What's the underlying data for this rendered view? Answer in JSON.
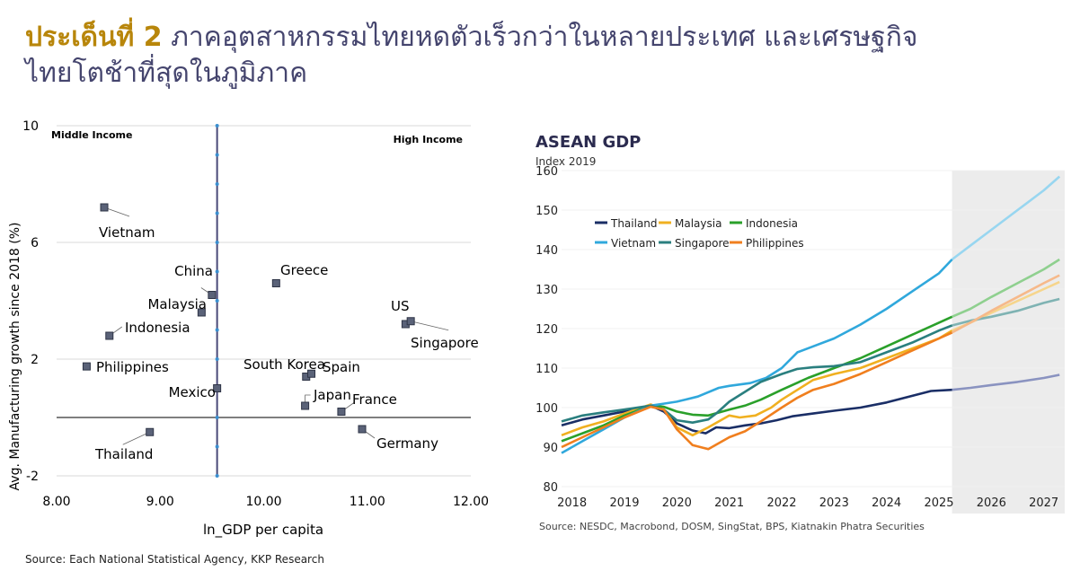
{
  "header": {
    "title_accent": "ประเด็นที่ 2",
    "title_rest": " ภาคอุตสาหกรรมไทยหดตัวเร็วกว่าในหลายประเทศ และเศรษฐกิจ",
    "title_line2": "ไทยโตช้าที่สุดในภูมิภาค"
  },
  "left_source": "Source: Each National Statistical Agency, KKP Research",
  "chart_data": [
    {
      "type": "scatter",
      "title": "",
      "xlabel": "ln_GDP per capita",
      "ylabel": "Avg. Manufacturing growth since 2018 (%)",
      "xlim": [
        8.0,
        12.0
      ],
      "ylim": [
        -2,
        10
      ],
      "xticks": [
        "8.00",
        "9.00",
        "10.00",
        "11.00",
        "12.00"
      ],
      "yticks": [
        "-2",
        "2",
        "6",
        "10"
      ],
      "divider_x": 9.55,
      "baseline_y": 0,
      "quadrant_labels": {
        "left": "Middle Income",
        "right": "High Income"
      },
      "points": [
        {
          "name": "Vietnam",
          "x": 8.46,
          "y": 7.2
        },
        {
          "name": "China",
          "x": 9.5,
          "y": 4.2
        },
        {
          "name": "Malaysia",
          "x": 9.4,
          "y": 3.6
        },
        {
          "name": "Indonesia",
          "x": 8.51,
          "y": 2.8
        },
        {
          "name": "Philippines",
          "x": 8.29,
          "y": 1.75
        },
        {
          "name": "Mexico",
          "x": 9.55,
          "y": 1.0
        },
        {
          "name": "Thailand",
          "x": 8.9,
          "y": -0.5
        },
        {
          "name": "Greece",
          "x": 10.12,
          "y": 4.6
        },
        {
          "name": "US",
          "x": 11.37,
          "y": 3.2
        },
        {
          "name": "Singapore",
          "x": 11.42,
          "y": 3.3
        },
        {
          "name": "South Korea",
          "x": 10.41,
          "y": 1.4
        },
        {
          "name": "Spain",
          "x": 10.46,
          "y": 1.5
        },
        {
          "name": "Japan",
          "x": 10.4,
          "y": 0.4
        },
        {
          "name": "France",
          "x": 10.75,
          "y": 0.2
        },
        {
          "name": "Germany",
          "x": 10.95,
          "y": -0.4
        }
      ]
    },
    {
      "type": "line",
      "title": "ASEAN GDP",
      "subtitle": "Index 2019",
      "ylim": [
        80,
        160
      ],
      "yticks": [
        "80",
        "90",
        "100",
        "110",
        "120",
        "130",
        "140",
        "150",
        "160"
      ],
      "xlim": [
        2017.8,
        2027.4
      ],
      "xticks": [
        "2018",
        "2019",
        "2020",
        "2021",
        "2022",
        "2023",
        "2024",
        "2025",
        "2026",
        "2027"
      ],
      "forecast_start": 2025.25,
      "source": "Source: NESDC, Macrobond, DOSM, SingStat, BPS, Kiatnakin Phatra Securities",
      "series": [
        {
          "name": "Thailand",
          "color": "#1a2e66",
          "forecast_color": "#8a93c0",
          "points": [
            [
              2017.8,
              95.5
            ],
            [
              2018.2,
              97
            ],
            [
              2018.6,
              98
            ],
            [
              2019,
              99
            ],
            [
              2019.5,
              100.5
            ],
            [
              2019.75,
              99
            ],
            [
              2020,
              96
            ],
            [
              2020.3,
              94.2
            ],
            [
              2020.55,
              93.5
            ],
            [
              2020.75,
              95
            ],
            [
              2021,
              94.8
            ],
            [
              2021.3,
              95.5
            ],
            [
              2021.6,
              96
            ],
            [
              2021.9,
              96.8
            ],
            [
              2022.2,
              97.8
            ],
            [
              2022.6,
              98.5
            ],
            [
              2023,
              99.2
            ],
            [
              2023.5,
              100
            ],
            [
              2024,
              101.3
            ],
            [
              2024.5,
              103
            ],
            [
              2024.85,
              104.2
            ],
            [
              2025.25,
              104.5
            ],
            [
              2025.6,
              105
            ],
            [
              2026,
              105.7
            ],
            [
              2026.5,
              106.5
            ],
            [
              2027,
              107.5
            ],
            [
              2027.3,
              108.3
            ]
          ]
        },
        {
          "name": "Malaysia",
          "color": "#f0b020",
          "forecast_color": "#f6d58c",
          "points": [
            [
              2017.8,
              93
            ],
            [
              2018.2,
              95
            ],
            [
              2018.6,
              96.5
            ],
            [
              2019,
              98.5
            ],
            [
              2019.5,
              100.8
            ],
            [
              2019.75,
              99.5
            ],
            [
              2020,
              95
            ],
            [
              2020.3,
              93
            ],
            [
              2020.6,
              95
            ],
            [
              2021,
              98
            ],
            [
              2021.2,
              97.5
            ],
            [
              2021.5,
              98
            ],
            [
              2021.8,
              100
            ],
            [
              2022,
              102
            ],
            [
              2022.3,
              104.5
            ],
            [
              2022.6,
              107
            ],
            [
              2023,
              108.5
            ],
            [
              2023.5,
              110
            ],
            [
              2024,
              112.5
            ],
            [
              2024.5,
              115
            ],
            [
              2025,
              117.5
            ],
            [
              2025.25,
              119.5
            ],
            [
              2025.6,
              121.5
            ],
            [
              2026,
              124
            ],
            [
              2026.5,
              127
            ],
            [
              2027,
              130
            ],
            [
              2027.3,
              131.8
            ]
          ]
        },
        {
          "name": "Indonesia",
          "color": "#2aa02a",
          "forecast_color": "#8fd08f",
          "points": [
            [
              2017.8,
              91.5
            ],
            [
              2018.2,
              93.5
            ],
            [
              2018.6,
              95.5
            ],
            [
              2019,
              98
            ],
            [
              2019.5,
              100.5
            ],
            [
              2019.75,
              100.2
            ],
            [
              2020,
              99
            ],
            [
              2020.3,
              98.2
            ],
            [
              2020.6,
              98
            ],
            [
              2021,
              99.5
            ],
            [
              2021.3,
              100.5
            ],
            [
              2021.6,
              102
            ],
            [
              2022,
              104.5
            ],
            [
              2022.5,
              107.5
            ],
            [
              2023,
              110
            ],
            [
              2023.5,
              112.5
            ],
            [
              2024,
              115.5
            ],
            [
              2024.5,
              118.5
            ],
            [
              2025,
              121.5
            ],
            [
              2025.25,
              123
            ],
            [
              2025.6,
              125
            ],
            [
              2026,
              128
            ],
            [
              2026.5,
              131.5
            ],
            [
              2027,
              135
            ],
            [
              2027.3,
              137.5
            ]
          ]
        },
        {
          "name": "Vietnam",
          "color": "#30a8dc",
          "forecast_color": "#98d6f0",
          "points": [
            [
              2017.8,
              88.5
            ],
            [
              2018.2,
              91.5
            ],
            [
              2018.6,
              94.5
            ],
            [
              2019,
              97.5
            ],
            [
              2019.5,
              100.5
            ],
            [
              2019.75,
              101
            ],
            [
              2020,
              101.5
            ],
            [
              2020.4,
              102.8
            ],
            [
              2020.8,
              105
            ],
            [
              2021,
              105.5
            ],
            [
              2021.4,
              106.2
            ],
            [
              2021.7,
              107.5
            ],
            [
              2022,
              110
            ],
            [
              2022.3,
              114
            ],
            [
              2022.6,
              115.5
            ],
            [
              2023,
              117.5
            ],
            [
              2023.5,
              121
            ],
            [
              2024,
              125
            ],
            [
              2024.5,
              129.5
            ],
            [
              2025,
              134
            ],
            [
              2025.25,
              137.5
            ],
            [
              2025.6,
              141
            ],
            [
              2026,
              145
            ],
            [
              2026.5,
              150
            ],
            [
              2027,
              155
            ],
            [
              2027.3,
              158.5
            ]
          ]
        },
        {
          "name": "Singapore",
          "color": "#2a7f7f",
          "forecast_color": "#7fb3b3",
          "points": [
            [
              2017.8,
              96.5
            ],
            [
              2018.2,
              98
            ],
            [
              2018.6,
              98.8
            ],
            [
              2019,
              99.5
            ],
            [
              2019.5,
              100.5
            ],
            [
              2019.75,
              99.5
            ],
            [
              2020,
              96.8
            ],
            [
              2020.3,
              96.2
            ],
            [
              2020.6,
              97
            ],
            [
              2020.75,
              98.5
            ],
            [
              2021,
              101.5
            ],
            [
              2021.3,
              104
            ],
            [
              2021.6,
              106.5
            ],
            [
              2022,
              108.5
            ],
            [
              2022.3,
              109.8
            ],
            [
              2022.6,
              110.2
            ],
            [
              2023,
              110.5
            ],
            [
              2023.5,
              111.5
            ],
            [
              2024,
              114
            ],
            [
              2024.5,
              116.5
            ],
            [
              2025,
              119.5
            ],
            [
              2025.25,
              120.8
            ],
            [
              2025.6,
              122
            ],
            [
              2026,
              123
            ],
            [
              2026.5,
              124.5
            ],
            [
              2027,
              126.5
            ],
            [
              2027.3,
              127.5
            ]
          ]
        },
        {
          "name": "Philippines",
          "color": "#f07f1e",
          "forecast_color": "#f6b98a",
          "points": [
            [
              2017.8,
              90
            ],
            [
              2018.2,
              92.5
            ],
            [
              2018.6,
              95
            ],
            [
              2019,
              97.5
            ],
            [
              2019.5,
              100.2
            ],
            [
              2019.75,
              99.5
            ],
            [
              2020,
              94.5
            ],
            [
              2020.3,
              90.5
            ],
            [
              2020.6,
              89.5
            ],
            [
              2020.8,
              91
            ],
            [
              2021,
              92.5
            ],
            [
              2021.3,
              94
            ],
            [
              2021.6,
              96.5
            ],
            [
              2022,
              100
            ],
            [
              2022.3,
              102.5
            ],
            [
              2022.6,
              104.5
            ],
            [
              2023,
              106
            ],
            [
              2023.5,
              108.5
            ],
            [
              2024,
              111.5
            ],
            [
              2024.5,
              114.5
            ],
            [
              2025,
              117.5
            ],
            [
              2025.25,
              119
            ],
            [
              2025.6,
              121.5
            ],
            [
              2026,
              124.5
            ],
            [
              2026.5,
              128
            ],
            [
              2027,
              131.5
            ],
            [
              2027.3,
              133.5
            ]
          ]
        }
      ]
    }
  ]
}
